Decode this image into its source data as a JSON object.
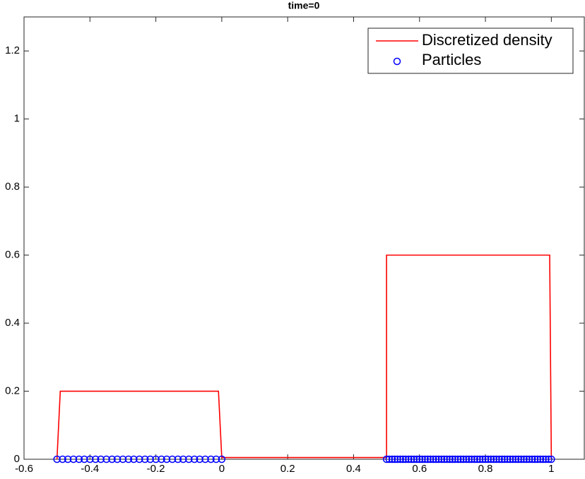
{
  "chart_data": {
    "type": "line",
    "title": "time=0",
    "xlim": [
      -0.6,
      1.1
    ],
    "ylim": [
      0,
      1.3
    ],
    "xticks": [
      -0.6,
      -0.4,
      -0.2,
      0,
      0.2,
      0.4,
      0.6,
      0.8,
      1
    ],
    "yticks": [
      0,
      0.2,
      0.4,
      0.6,
      0.8,
      1,
      1.2
    ],
    "grid": false,
    "legend": "northeast",
    "series": [
      {
        "name": "Discretized density",
        "color": "#ff0000",
        "type": "line",
        "x": [
          -0.5,
          -0.49,
          -0.01,
          0,
          0.5,
          0.5,
          0.995,
          1
        ],
        "values": [
          0,
          0.2,
          0.2,
          0.005,
          0.005,
          0.6,
          0.6,
          0
        ]
      },
      {
        "name": "Particles",
        "color": "#0000ff",
        "type": "scatter",
        "x": [
          -0.5,
          -0.483,
          -0.467,
          -0.45,
          -0.433,
          -0.417,
          -0.4,
          -0.383,
          -0.367,
          -0.35,
          -0.333,
          -0.317,
          -0.3,
          -0.283,
          -0.267,
          -0.25,
          -0.233,
          -0.217,
          -0.2,
          -0.183,
          -0.167,
          -0.15,
          -0.133,
          -0.117,
          -0.1,
          -0.083,
          -0.067,
          -0.05,
          -0.033,
          -0.017,
          0,
          0.5,
          0.508,
          0.517,
          0.525,
          0.533,
          0.542,
          0.55,
          0.558,
          0.567,
          0.575,
          0.583,
          0.592,
          0.6,
          0.608,
          0.617,
          0.625,
          0.633,
          0.642,
          0.65,
          0.658,
          0.667,
          0.675,
          0.683,
          0.692,
          0.7,
          0.708,
          0.717,
          0.725,
          0.733,
          0.742,
          0.75,
          0.758,
          0.767,
          0.775,
          0.783,
          0.792,
          0.8,
          0.808,
          0.817,
          0.825,
          0.833,
          0.842,
          0.85,
          0.858,
          0.867,
          0.875,
          0.883,
          0.892,
          0.9,
          0.908,
          0.917,
          0.925,
          0.933,
          0.942,
          0.95,
          0.958,
          0.967,
          0.975,
          0.983,
          0.992,
          1
        ],
        "values": [
          0,
          0,
          0,
          0,
          0,
          0,
          0,
          0,
          0,
          0,
          0,
          0,
          0,
          0,
          0,
          0,
          0,
          0,
          0,
          0,
          0,
          0,
          0,
          0,
          0,
          0,
          0,
          0,
          0,
          0,
          0,
          0,
          0,
          0,
          0,
          0,
          0,
          0,
          0,
          0,
          0,
          0,
          0,
          0,
          0,
          0,
          0,
          0,
          0,
          0,
          0,
          0,
          0,
          0,
          0,
          0,
          0,
          0,
          0,
          0,
          0,
          0,
          0,
          0,
          0,
          0,
          0,
          0,
          0,
          0,
          0,
          0,
          0,
          0,
          0,
          0,
          0,
          0,
          0,
          0,
          0,
          0,
          0,
          0,
          0,
          0,
          0,
          0,
          0,
          0,
          0,
          0
        ]
      }
    ]
  }
}
